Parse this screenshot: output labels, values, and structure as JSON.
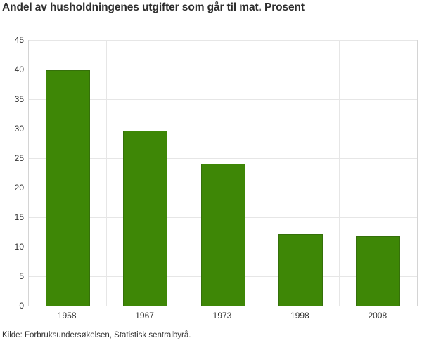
{
  "title": "Andel av husholdningenes utgifter som går til mat. Prosent",
  "source": "Kilde: Forbruksundersøkelsen, Statistisk sentralbyrå.",
  "colors": {
    "bar": "#3e8706",
    "bar_border": "#35700a",
    "grid": "#e6e6e6",
    "plot_border": "#d4d4d4",
    "axis_line": "#c6c6c6",
    "title_text": "#2e2e2e",
    "tick_text": "#333333",
    "source_text": "#333333"
  },
  "chart_data": {
    "type": "bar",
    "categories": [
      "1958",
      "1967",
      "1973",
      "1998",
      "2008"
    ],
    "values": [
      39.9,
      29.6,
      24.0,
      12.2,
      11.8
    ],
    "title": "Andel av husholdningenes utgifter som går til mat. Prosent",
    "xlabel": "",
    "ylabel": "",
    "ylim": [
      0,
      45
    ],
    "yticks": [
      0,
      5,
      10,
      15,
      20,
      25,
      30,
      35,
      40,
      45
    ],
    "grid": true,
    "legend": "none",
    "source": "Kilde: Forbruksundersøkelsen, Statistisk sentralbyrå."
  }
}
